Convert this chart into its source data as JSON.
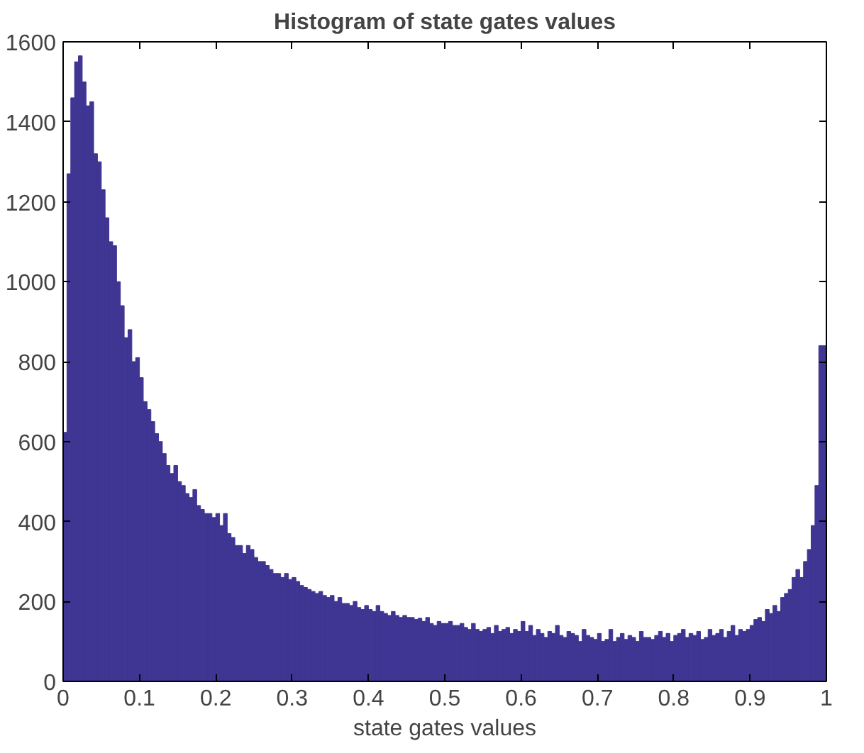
{
  "chart_data": {
    "type": "histogram",
    "title": "Histogram of state gates values",
    "xlabel": "state gates values",
    "color": "#3f3592",
    "bins": [
      0,
      0.005,
      0.01,
      0.015,
      0.02,
      0.025,
      0.03,
      0.035,
      0.04,
      0.045,
      0.05,
      0.055,
      0.06,
      0.065,
      0.07,
      0.075,
      0.08,
      0.085,
      0.09,
      0.095,
      0.1,
      0.105,
      0.11,
      0.115,
      0.12,
      0.125,
      0.13,
      0.135,
      0.14,
      0.145,
      0.15,
      0.155,
      0.16,
      0.165,
      0.17,
      0.175,
      0.18,
      0.185,
      0.19,
      0.195,
      0.2,
      0.205,
      0.21,
      0.215,
      0.22,
      0.225,
      0.23,
      0.235,
      0.24,
      0.245,
      0.25,
      0.255,
      0.26,
      0.265,
      0.27,
      0.275,
      0.28,
      0.285,
      0.29,
      0.295,
      0.3,
      0.305,
      0.31,
      0.315,
      0.32,
      0.325,
      0.33,
      0.335,
      0.34,
      0.345,
      0.35,
      0.355,
      0.36,
      0.365,
      0.37,
      0.375,
      0.38,
      0.385,
      0.39,
      0.395,
      0.4,
      0.405,
      0.41,
      0.415,
      0.42,
      0.425,
      0.43,
      0.435,
      0.44,
      0.445,
      0.45,
      0.455,
      0.46,
      0.465,
      0.47,
      0.475,
      0.48,
      0.485,
      0.49,
      0.495,
      0.5,
      0.505,
      0.51,
      0.515,
      0.52,
      0.525,
      0.53,
      0.535,
      0.54,
      0.545,
      0.55,
      0.555,
      0.56,
      0.565,
      0.57,
      0.575,
      0.58,
      0.585,
      0.59,
      0.595,
      0.6,
      0.605,
      0.61,
      0.615,
      0.62,
      0.625,
      0.63,
      0.635,
      0.64,
      0.645,
      0.65,
      0.655,
      0.66,
      0.665,
      0.67,
      0.675,
      0.68,
      0.685,
      0.69,
      0.695,
      0.7,
      0.705,
      0.71,
      0.715,
      0.72,
      0.725,
      0.73,
      0.735,
      0.74,
      0.745,
      0.75,
      0.755,
      0.76,
      0.765,
      0.77,
      0.775,
      0.78,
      0.785,
      0.79,
      0.795,
      0.8,
      0.805,
      0.81,
      0.815,
      0.82,
      0.825,
      0.83,
      0.835,
      0.84,
      0.845,
      0.85,
      0.855,
      0.86,
      0.865,
      0.87,
      0.875,
      0.88,
      0.885,
      0.89,
      0.895,
      0.9,
      0.905,
      0.91,
      0.915,
      0.92,
      0.925,
      0.93,
      0.935,
      0.94,
      0.945,
      0.95,
      0.955,
      0.96,
      0.965,
      0.97,
      0.975,
      0.98,
      0.985,
      0.99,
      0.995,
      1
    ],
    "values": [
      623,
      1270,
      1460,
      1550,
      1565,
      1500,
      1440,
      1450,
      1320,
      1300,
      1230,
      1160,
      1100,
      1090,
      1000,
      940,
      860,
      880,
      800,
      810,
      760,
      700,
      680,
      650,
      620,
      600,
      570,
      540,
      520,
      540,
      500,
      490,
      470,
      460,
      480,
      440,
      430,
      420,
      420,
      410,
      420,
      390,
      420,
      370,
      360,
      340,
      340,
      320,
      340,
      330,
      310,
      300,
      300,
      290,
      280,
      270,
      270,
      260,
      270,
      255,
      260,
      250,
      240,
      235,
      230,
      225,
      220,
      225,
      215,
      210,
      215,
      200,
      210,
      195,
      195,
      190,
      200,
      185,
      180,
      190,
      180,
      175,
      190,
      175,
      170,
      165,
      175,
      165,
      160,
      165,
      160,
      160,
      155,
      158,
      150,
      160,
      145,
      140,
      150,
      145,
      145,
      150,
      140,
      140,
      145,
      135,
      130,
      145,
      130,
      125,
      130,
      135,
      120,
      140,
      125,
      130,
      135,
      120,
      130,
      125,
      150,
      125,
      140,
      115,
      130,
      120,
      110,
      125,
      120,
      140,
      115,
      110,
      125,
      120,
      115,
      100,
      130,
      115,
      110,
      105,
      120,
      100,
      105,
      130,
      100,
      110,
      120,
      105,
      115,
      110,
      100,
      125,
      110,
      110,
      105,
      115,
      125,
      110,
      120,
      100,
      115,
      120,
      130,
      110,
      120,
      115,
      125,
      105,
      110,
      130,
      115,
      120,
      130,
      110,
      125,
      140,
      115,
      130,
      125,
      130,
      140,
      155,
      160,
      150,
      180,
      170,
      190,
      175,
      210,
      220,
      230,
      260,
      280,
      260,
      300,
      330,
      390,
      490,
      840,
      840
    ],
    "xlim": [
      0,
      1
    ],
    "xticks": [
      0,
      0.1,
      0.2,
      0.3,
      0.4,
      0.5,
      0.6,
      0.7,
      0.8,
      0.9,
      1
    ],
    "ylim": [
      0,
      1600
    ],
    "yticks": [
      0,
      200,
      400,
      600,
      800,
      1000,
      1200,
      1400,
      1600
    ],
    "grid": false
  }
}
